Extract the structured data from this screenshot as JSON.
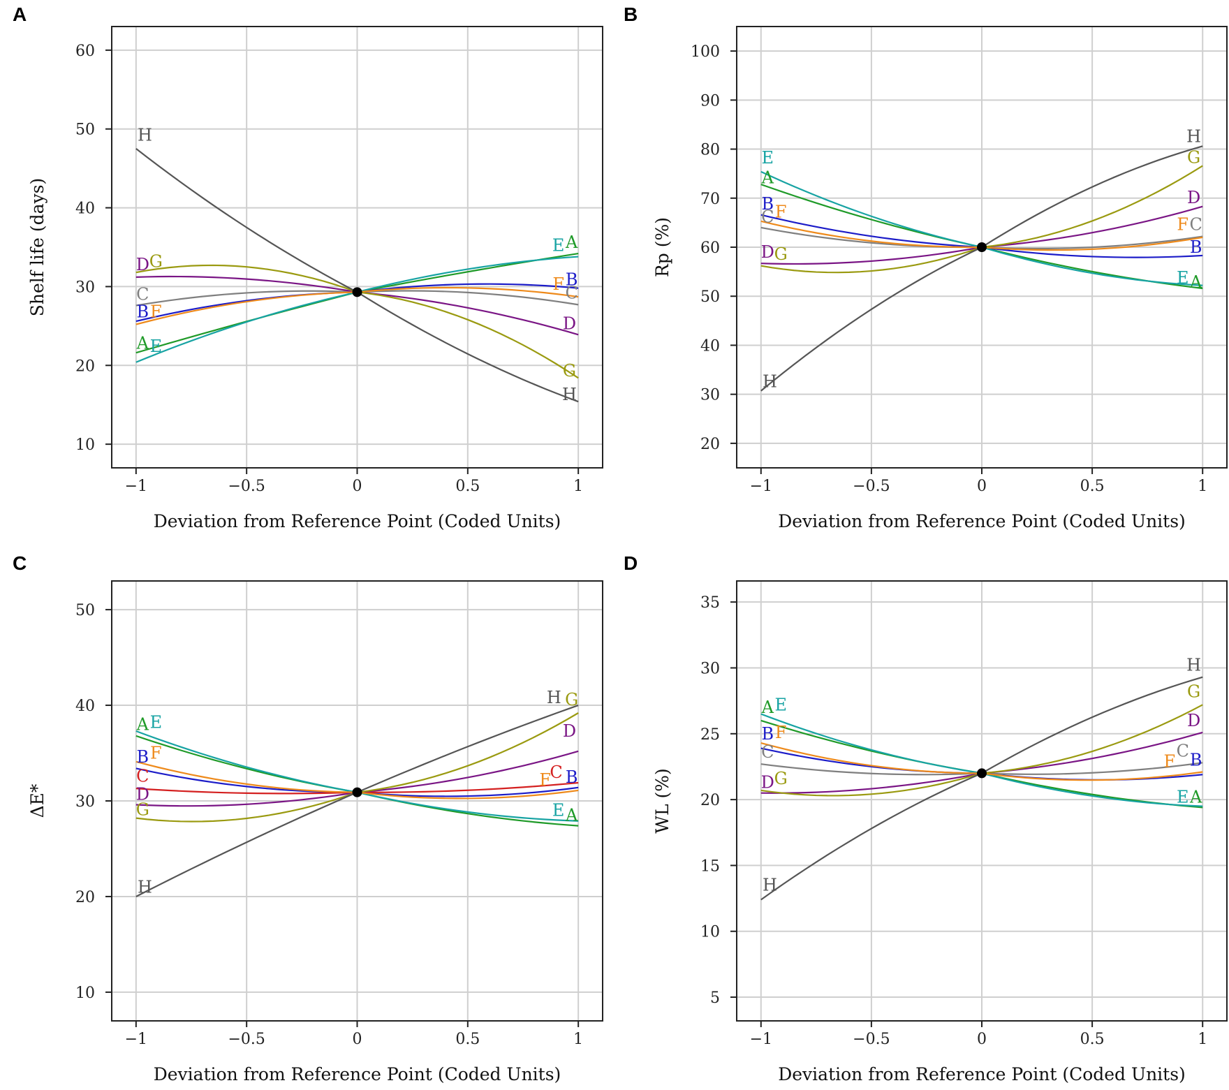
{
  "colors": {
    "A": "#1f9a28",
    "B": "#1c1cc8",
    "C": "#7f7f7f",
    "C_red": "#d42020",
    "D": "#7a1585",
    "E": "#17a3a3",
    "F": "#ee8a1b",
    "G": "#9a9a10",
    "H": "#555555"
  },
  "chart_data": [
    {
      "panel": "A",
      "type": "line",
      "title": "",
      "xlabel": "Deviation from Reference Point (Coded Units)",
      "ylabel": "Shelf life (days)",
      "xlim": [
        -1.11,
        1.11
      ],
      "ylim": [
        7,
        63
      ],
      "x_ticks": [
        -1,
        -0.5,
        0,
        0.5,
        1
      ],
      "x_tick_labels": [
        "−1",
        "−0.5",
        "0",
        "0.5",
        "1"
      ],
      "y_ticks": [
        10,
        20,
        30,
        40,
        50,
        60
      ],
      "y_tick_labels": [
        "10",
        "20",
        "30",
        "40",
        "50",
        "60"
      ],
      "grid": true,
      "reference_point": {
        "x": 0,
        "y": 29.3
      },
      "series": [
        {
          "name": "A",
          "color_key": "A",
          "left": 21.6,
          "right": 34.2,
          "curvature": 1.0
        },
        {
          "name": "B",
          "color_key": "B",
          "left": 25.6,
          "right": 29.8,
          "curvature": -1.6
        },
        {
          "name": "C",
          "color_key": "C",
          "left": 27.6,
          "right": 27.7,
          "curvature": -1.5
        },
        {
          "name": "D",
          "color_key": "D",
          "left": 31.2,
          "right": 23.9,
          "curvature": -1.2
        },
        {
          "name": "E",
          "color_key": "E",
          "left": 20.4,
          "right": 33.8,
          "curvature": -0.5
        },
        {
          "name": "F",
          "color_key": "F",
          "left": 25.2,
          "right": 28.7,
          "curvature": -1.1
        },
        {
          "name": "G",
          "color_key": "G",
          "left": 31.8,
          "right": 18.4,
          "curvature": -4.0
        },
        {
          "name": "H",
          "color_key": "H",
          "left": 47.5,
          "right": 15.4,
          "curvature": 1.6
        }
      ],
      "labels": [
        {
          "text": "H",
          "x": -0.96,
          "y": 49.2,
          "color_key": "H"
        },
        {
          "text": "D",
          "x": -0.97,
          "y": 32.8,
          "color_key": "D"
        },
        {
          "text": "G",
          "x": -0.91,
          "y": 33.2,
          "color_key": "G"
        },
        {
          "text": "C",
          "x": -0.97,
          "y": 29.0,
          "color_key": "C"
        },
        {
          "text": "B",
          "x": -0.97,
          "y": 26.8,
          "color_key": "B"
        },
        {
          "text": "F",
          "x": -0.91,
          "y": 26.8,
          "color_key": "F"
        },
        {
          "text": "A",
          "x": -0.97,
          "y": 22.8,
          "color_key": "A"
        },
        {
          "text": "E",
          "x": -0.91,
          "y": 22.4,
          "color_key": "E"
        },
        {
          "text": "E",
          "x": 0.91,
          "y": 35.2,
          "color_key": "E"
        },
        {
          "text": "A",
          "x": 0.97,
          "y": 35.6,
          "color_key": "A"
        },
        {
          "text": "B",
          "x": 0.97,
          "y": 30.9,
          "color_key": "B"
        },
        {
          "text": "F",
          "x": 0.91,
          "y": 30.3,
          "color_key": "F"
        },
        {
          "text": "C",
          "x": 0.97,
          "y": 29.2,
          "color_key": "C"
        },
        {
          "text": "D",
          "x": 0.96,
          "y": 25.3,
          "color_key": "D"
        },
        {
          "text": "G",
          "x": 0.96,
          "y": 19.3,
          "color_key": "G"
        },
        {
          "text": "H",
          "x": 0.96,
          "y": 16.3,
          "color_key": "H"
        }
      ]
    },
    {
      "panel": "B",
      "type": "line",
      "title": "",
      "xlabel": "Deviation from Reference Point (Coded Units)",
      "ylabel": "Rp (%)",
      "xlim": [
        -1.11,
        1.11
      ],
      "ylim": [
        15,
        105
      ],
      "x_ticks": [
        -1,
        -0.5,
        0,
        0.5,
        1
      ],
      "x_tick_labels": [
        "−1",
        "−0.5",
        "0",
        "0.5",
        "1"
      ],
      "y_ticks": [
        20,
        30,
        40,
        50,
        60,
        70,
        80,
        90,
        100
      ],
      "y_tick_labels": [
        "20",
        "30",
        "40",
        "50",
        "60",
        "70",
        "80",
        "90",
        "100"
      ],
      "grid": true,
      "reference_point": {
        "x": 0,
        "y": 60.0
      },
      "series": [
        {
          "name": "A",
          "color_key": "A",
          "left": 72.8,
          "right": 51.6,
          "curvature": 1.0
        },
        {
          "name": "B",
          "color_key": "B",
          "left": 66.6,
          "right": 58.3,
          "curvature": 2.0
        },
        {
          "name": "C",
          "color_key": "C",
          "left": 64.0,
          "right": 62.2,
          "curvature": 1.5
        },
        {
          "name": "D",
          "color_key": "D",
          "left": 56.7,
          "right": 68.3,
          "curvature": 2.5
        },
        {
          "name": "E",
          "color_key": "E",
          "left": 75.4,
          "right": 52.2,
          "curvature": 2.0
        },
        {
          "name": "F",
          "color_key": "F",
          "left": 65.3,
          "right": 62.0,
          "curvature": 2.2
        },
        {
          "name": "G",
          "color_key": "G",
          "left": 56.2,
          "right": 76.6,
          "curvature": 6.0
        },
        {
          "name": "H",
          "color_key": "H",
          "left": 30.7,
          "right": 80.6,
          "curvature": -4.0
        }
      ],
      "labels": [
        {
          "text": "E",
          "x": -0.97,
          "y": 78.2,
          "color_key": "E"
        },
        {
          "text": "A",
          "x": -0.97,
          "y": 74.2,
          "color_key": "A"
        },
        {
          "text": "B",
          "x": -0.97,
          "y": 68.8,
          "color_key": "B"
        },
        {
          "text": "C",
          "x": -0.97,
          "y": 66.2,
          "color_key": "C"
        },
        {
          "text": "F",
          "x": -0.91,
          "y": 67.2,
          "color_key": "F"
        },
        {
          "text": "D",
          "x": -0.97,
          "y": 59.0,
          "color_key": "D"
        },
        {
          "text": "G",
          "x": -0.91,
          "y": 58.6,
          "color_key": "G"
        },
        {
          "text": "H",
          "x": -0.96,
          "y": 32.6,
          "color_key": "H"
        },
        {
          "text": "H",
          "x": 0.96,
          "y": 82.6,
          "color_key": "H"
        },
        {
          "text": "G",
          "x": 0.96,
          "y": 78.3,
          "color_key": "G"
        },
        {
          "text": "D",
          "x": 0.96,
          "y": 70.1,
          "color_key": "D"
        },
        {
          "text": "F",
          "x": 0.91,
          "y": 64.6,
          "color_key": "F"
        },
        {
          "text": "C",
          "x": 0.97,
          "y": 64.6,
          "color_key": "C"
        },
        {
          "text": "B",
          "x": 0.97,
          "y": 60.0,
          "color_key": "B"
        },
        {
          "text": "E",
          "x": 0.91,
          "y": 53.7,
          "color_key": "E"
        },
        {
          "text": "A",
          "x": 0.97,
          "y": 52.9,
          "color_key": "A"
        }
      ]
    },
    {
      "panel": "C",
      "type": "line",
      "title": "",
      "xlabel": "Deviation from Reference Point (Coded Units)",
      "ylabel": "ΔE*",
      "xlim": [
        -1.11,
        1.11
      ],
      "ylim": [
        7,
        53
      ],
      "x_ticks": [
        -1,
        -0.5,
        0,
        0.5,
        1
      ],
      "x_tick_labels": [
        "−1",
        "−0.5",
        "0",
        "0.5",
        "1"
      ],
      "y_ticks": [
        10,
        20,
        30,
        40,
        50
      ],
      "y_tick_labels": [
        "10",
        "20",
        "30",
        "40",
        "50"
      ],
      "grid": true,
      "reference_point": {
        "x": 0,
        "y": 30.9
      },
      "series": [
        {
          "name": "A",
          "color_key": "A",
          "left": 36.8,
          "right": 27.4,
          "curvature": 0.8
        },
        {
          "name": "B",
          "color_key": "B",
          "left": 33.4,
          "right": 31.4,
          "curvature": 1.2
        },
        {
          "name": "C",
          "color_key": "C_red",
          "left": 31.3,
          "right": 31.9,
          "curvature": 0.5
        },
        {
          "name": "D",
          "color_key": "D",
          "left": 29.6,
          "right": 35.2,
          "curvature": 1.0
        },
        {
          "name": "E",
          "color_key": "E",
          "left": 37.3,
          "right": 27.9,
          "curvature": 0.6
        },
        {
          "name": "F",
          "color_key": "F",
          "left": 34.1,
          "right": 31.1,
          "curvature": 1.4
        },
        {
          "name": "G",
          "color_key": "G",
          "left": 28.2,
          "right": 39.2,
          "curvature": 3.0
        },
        {
          "name": "H",
          "color_key": "H",
          "left": 20.0,
          "right": 40.0,
          "curvature": 0.0
        }
      ],
      "labels": [
        {
          "text": "A",
          "x": -0.97,
          "y": 38.0,
          "color_key": "A"
        },
        {
          "text": "E",
          "x": -0.91,
          "y": 38.2,
          "color_key": "E"
        },
        {
          "text": "B",
          "x": -0.97,
          "y": 34.6,
          "color_key": "B"
        },
        {
          "text": "F",
          "x": -0.91,
          "y": 35.0,
          "color_key": "F"
        },
        {
          "text": "C",
          "x": -0.97,
          "y": 32.6,
          "color_key": "C_red"
        },
        {
          "text": "D",
          "x": -0.97,
          "y": 30.7,
          "color_key": "D"
        },
        {
          "text": "G",
          "x": -0.97,
          "y": 29.1,
          "color_key": "G"
        },
        {
          "text": "H",
          "x": -0.96,
          "y": 21.0,
          "color_key": "H"
        },
        {
          "text": "H",
          "x": 0.89,
          "y": 40.8,
          "color_key": "H"
        },
        {
          "text": "G",
          "x": 0.97,
          "y": 40.6,
          "color_key": "G"
        },
        {
          "text": "D",
          "x": 0.96,
          "y": 37.3,
          "color_key": "D"
        },
        {
          "text": "C",
          "x": 0.9,
          "y": 33.0,
          "color_key": "C_red"
        },
        {
          "text": "B",
          "x": 0.97,
          "y": 32.5,
          "color_key": "B"
        },
        {
          "text": "F",
          "x": 0.85,
          "y": 32.2,
          "color_key": "F"
        },
        {
          "text": "E",
          "x": 0.91,
          "y": 29.0,
          "color_key": "E"
        },
        {
          "text": "A",
          "x": 0.97,
          "y": 28.5,
          "color_key": "A"
        }
      ]
    },
    {
      "panel": "D",
      "type": "line",
      "title": "",
      "xlabel": "Deviation from Reference Point (Coded Units)",
      "ylabel": "WL (%)",
      "xlim": [
        -1.11,
        1.11
      ],
      "ylim": [
        3.2,
        36.6
      ],
      "x_ticks": [
        -1,
        -0.5,
        0,
        0.5,
        1
      ],
      "x_tick_labels": [
        "−1",
        "−0.5",
        "0",
        "0.5",
        "1"
      ],
      "y_ticks": [
        5,
        10,
        15,
        20,
        25,
        30,
        35
      ],
      "y_tick_labels": [
        "5",
        "10",
        "15",
        "20",
        "25",
        "30",
        "35"
      ],
      "grid": true,
      "reference_point": {
        "x": 0,
        "y": 22.0
      },
      "series": [
        {
          "name": "A",
          "color_key": "A",
          "left": 26.0,
          "right": 19.4,
          "curvature": 0.6
        },
        {
          "name": "B",
          "color_key": "B",
          "left": 23.9,
          "right": 21.9,
          "curvature": 1.0
        },
        {
          "name": "C",
          "color_key": "C",
          "left": 22.7,
          "right": 22.8,
          "curvature": 0.8
        },
        {
          "name": "D",
          "color_key": "D",
          "left": 20.5,
          "right": 25.1,
          "curvature": 1.0
        },
        {
          "name": "E",
          "color_key": "E",
          "left": 26.5,
          "right": 19.5,
          "curvature": 1.0
        },
        {
          "name": "F",
          "color_key": "F",
          "left": 24.3,
          "right": 22.1,
          "curvature": 1.2
        },
        {
          "name": "G",
          "color_key": "G",
          "left": 20.7,
          "right": 27.2,
          "curvature": 2.0
        },
        {
          "name": "H",
          "color_key": "H",
          "left": 12.4,
          "right": 29.3,
          "curvature": -1.4
        }
      ],
      "labels": [
        {
          "text": "A",
          "x": -0.97,
          "y": 27.0,
          "color_key": "A"
        },
        {
          "text": "E",
          "x": -0.91,
          "y": 27.2,
          "color_key": "E"
        },
        {
          "text": "B",
          "x": -0.97,
          "y": 25.0,
          "color_key": "B"
        },
        {
          "text": "F",
          "x": -0.91,
          "y": 25.1,
          "color_key": "F"
        },
        {
          "text": "C",
          "x": -0.97,
          "y": 23.6,
          "color_key": "C"
        },
        {
          "text": "D",
          "x": -0.97,
          "y": 21.3,
          "color_key": "D"
        },
        {
          "text": "G",
          "x": -0.91,
          "y": 21.6,
          "color_key": "G"
        },
        {
          "text": "H",
          "x": -0.96,
          "y": 13.5,
          "color_key": "H"
        },
        {
          "text": "H",
          "x": 0.96,
          "y": 30.2,
          "color_key": "H"
        },
        {
          "text": "G",
          "x": 0.96,
          "y": 28.2,
          "color_key": "G"
        },
        {
          "text": "D",
          "x": 0.96,
          "y": 26.0,
          "color_key": "D"
        },
        {
          "text": "C",
          "x": 0.91,
          "y": 23.7,
          "color_key": "C"
        },
        {
          "text": "B",
          "x": 0.97,
          "y": 23.0,
          "color_key": "B"
        },
        {
          "text": "F",
          "x": 0.85,
          "y": 22.9,
          "color_key": "F"
        },
        {
          "text": "E",
          "x": 0.91,
          "y": 20.2,
          "color_key": "E"
        },
        {
          "text": "A",
          "x": 0.97,
          "y": 20.2,
          "color_key": "A"
        }
      ]
    }
  ]
}
